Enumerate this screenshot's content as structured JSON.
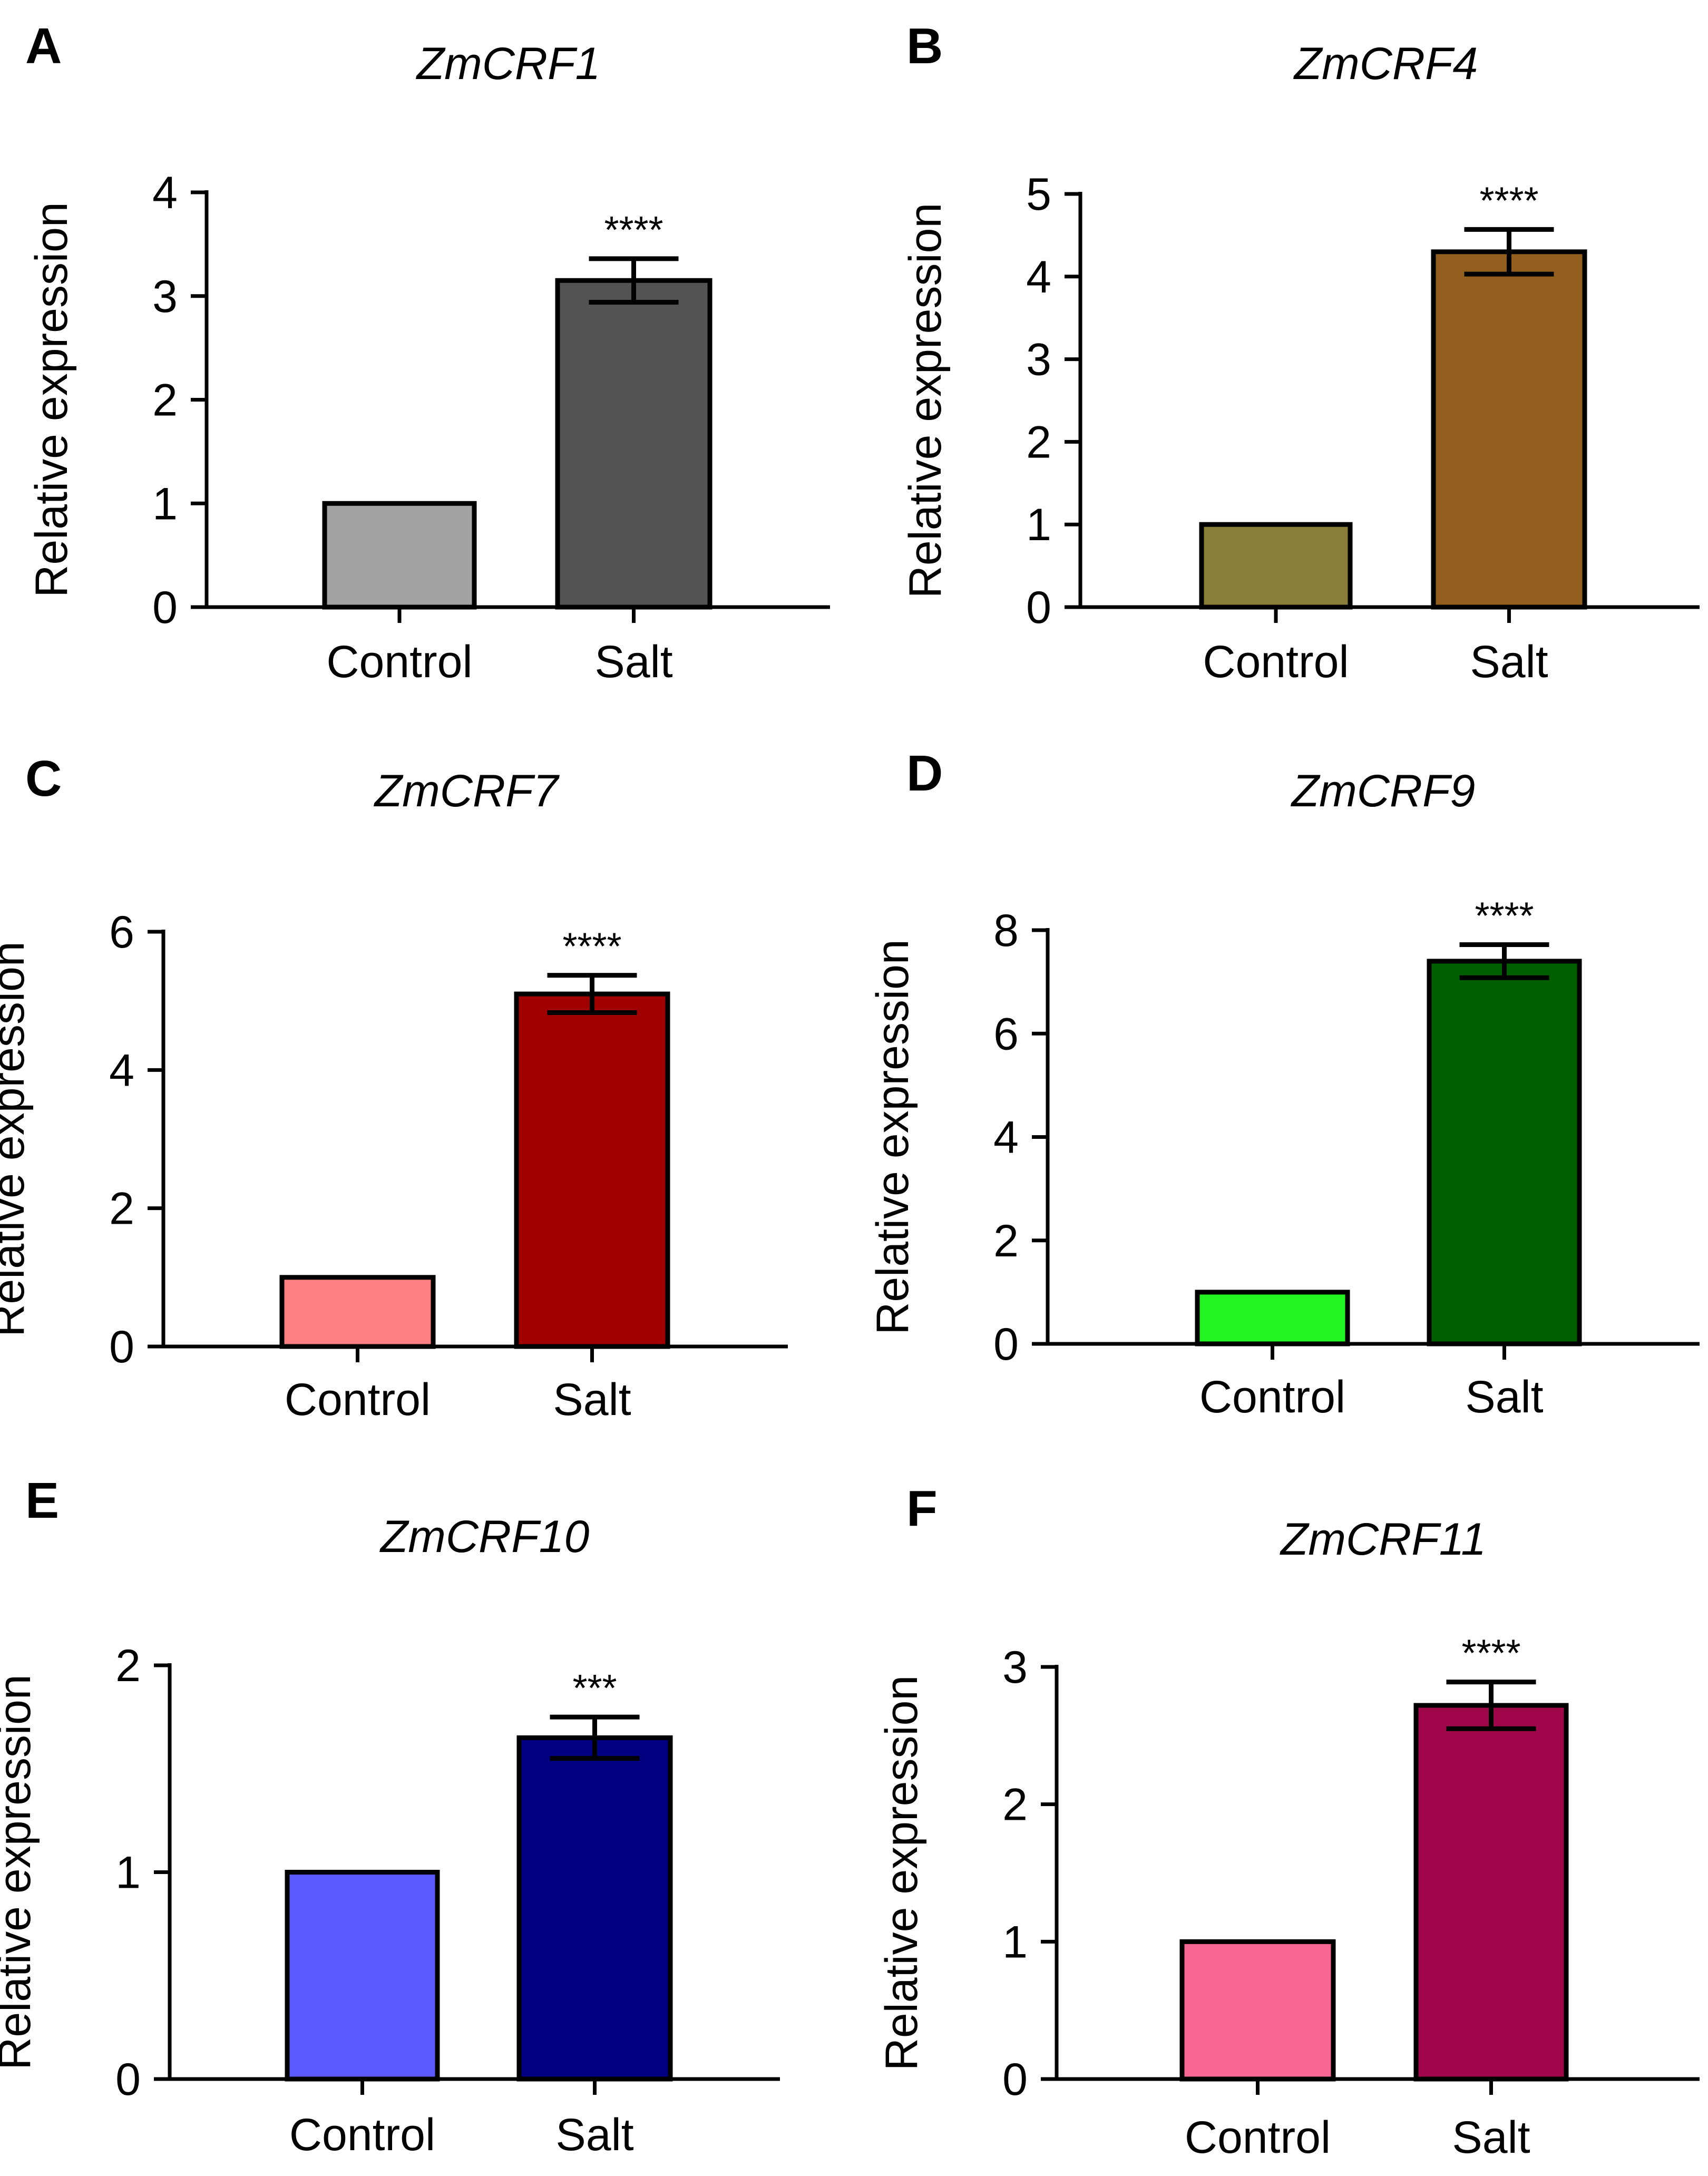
{
  "chart_data": [
    {
      "panel": "A",
      "type": "bar",
      "title": "ZmCRF1",
      "ylabel": "Relative expression",
      "categories": [
        "Control",
        "Salt"
      ],
      "values": [
        1,
        3.15
      ],
      "errors": [
        0,
        0.21
      ],
      "colors": [
        "#a3a2a5",
        "#535353"
      ],
      "significance": [
        "",
        "****"
      ],
      "ylim": [
        0,
        4
      ],
      "yticks": [
        0,
        1,
        2,
        3,
        4
      ]
    },
    {
      "panel": "B",
      "type": "bar",
      "title": "ZmCRF4",
      "ylabel": "Relative expression",
      "categories": [
        "Control",
        "Salt"
      ],
      "values": [
        1,
        4.3
      ],
      "errors": [
        0,
        0.27
      ],
      "colors": [
        "#8b7d3a",
        "#935f1f"
      ],
      "significance": [
        "",
        "****"
      ],
      "ylim": [
        0,
        5
      ],
      "yticks": [
        0,
        1,
        2,
        3,
        4,
        5
      ]
    },
    {
      "panel": "C",
      "type": "bar",
      "title": "ZmCRF7",
      "ylabel": "Relative expression",
      "categories": [
        "Control",
        "Salt"
      ],
      "values": [
        1,
        5.1
      ],
      "errors": [
        0,
        0.27
      ],
      "colors": [
        "#ff8181",
        "#a00000"
      ],
      "significance": [
        "",
        "****"
      ],
      "ylim": [
        0,
        6
      ],
      "yticks": [
        0,
        2,
        4,
        6
      ]
    },
    {
      "panel": "D",
      "type": "bar",
      "title": "ZmCRF9",
      "ylabel": "Relative expression",
      "categories": [
        "Control",
        "Salt"
      ],
      "values": [
        1,
        7.4
      ],
      "errors": [
        0,
        0.32
      ],
      "colors": [
        "#21f421",
        "#006000"
      ],
      "significance": [
        "",
        "****"
      ],
      "ylim": [
        0,
        8
      ],
      "yticks": [
        0,
        2,
        4,
        6,
        8
      ]
    },
    {
      "panel": "E",
      "type": "bar",
      "title": "ZmCRF10",
      "ylabel": "Relative expression",
      "categories": [
        "Control",
        "Salt"
      ],
      "values": [
        1,
        1.65
      ],
      "errors": [
        0,
        0.1
      ],
      "colors": [
        "#5a5afe",
        "#000080"
      ],
      "significance": [
        "",
        "***"
      ],
      "ylim": [
        0,
        2
      ],
      "yticks": [
        0,
        1,
        2
      ]
    },
    {
      "panel": "F",
      "type": "bar",
      "title": "ZmCRF11",
      "ylabel": "Relative expression",
      "categories": [
        "Control",
        "Salt"
      ],
      "values": [
        1,
        2.72
      ],
      "errors": [
        0,
        0.17
      ],
      "colors": [
        "#f96793",
        "#a0064a"
      ],
      "significance": [
        "",
        "****"
      ],
      "ylim": [
        0,
        3
      ],
      "yticks": [
        0,
        1,
        2,
        3
      ]
    }
  ]
}
